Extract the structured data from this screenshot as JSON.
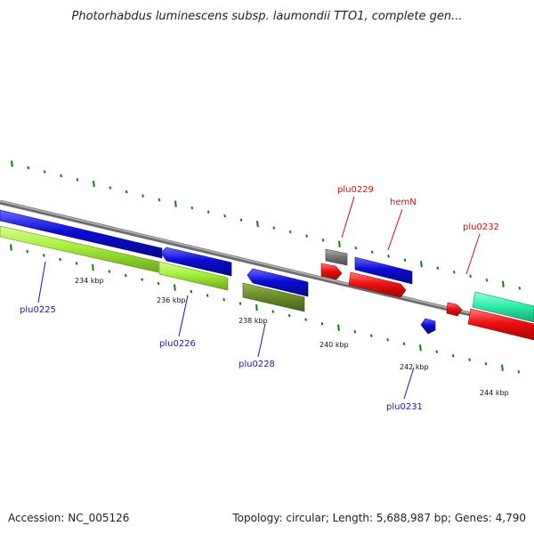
{
  "title": "Photorhabdus luminescens subsp. laumondii TTO1, complete gen...",
  "footer": {
    "accession": "Accession: NC_005126",
    "summary": "Topology: circular; Length: 5,688,987 bp; Genes: 4,790"
  },
  "scale_labels": [
    "234 kbp",
    "236 kbp",
    "238 kbp",
    "240 kbp",
    "242 kbp",
    "244 kbp"
  ],
  "gene_labels": {
    "plu0225": "plu0225",
    "plu0226": "plu0226",
    "plu0228": "plu0228",
    "plu0229": "plu0229",
    "hemN": "hemN",
    "plu0231": "plu0231",
    "plu0232": "plu0232"
  },
  "colors": {
    "backbone": "#8c8c8c",
    "tick": "#137a13",
    "blue_gene": "#0b0bd6",
    "red_gene": "#ee1111",
    "lime_gene": "#a6ee3a",
    "olive_gene": "#6b8c2a",
    "gray_gene": "#7a7a7a",
    "teal_gene": "#2ff0a8",
    "label_blue": "#1a1aa8",
    "label_red": "#cc1111"
  }
}
